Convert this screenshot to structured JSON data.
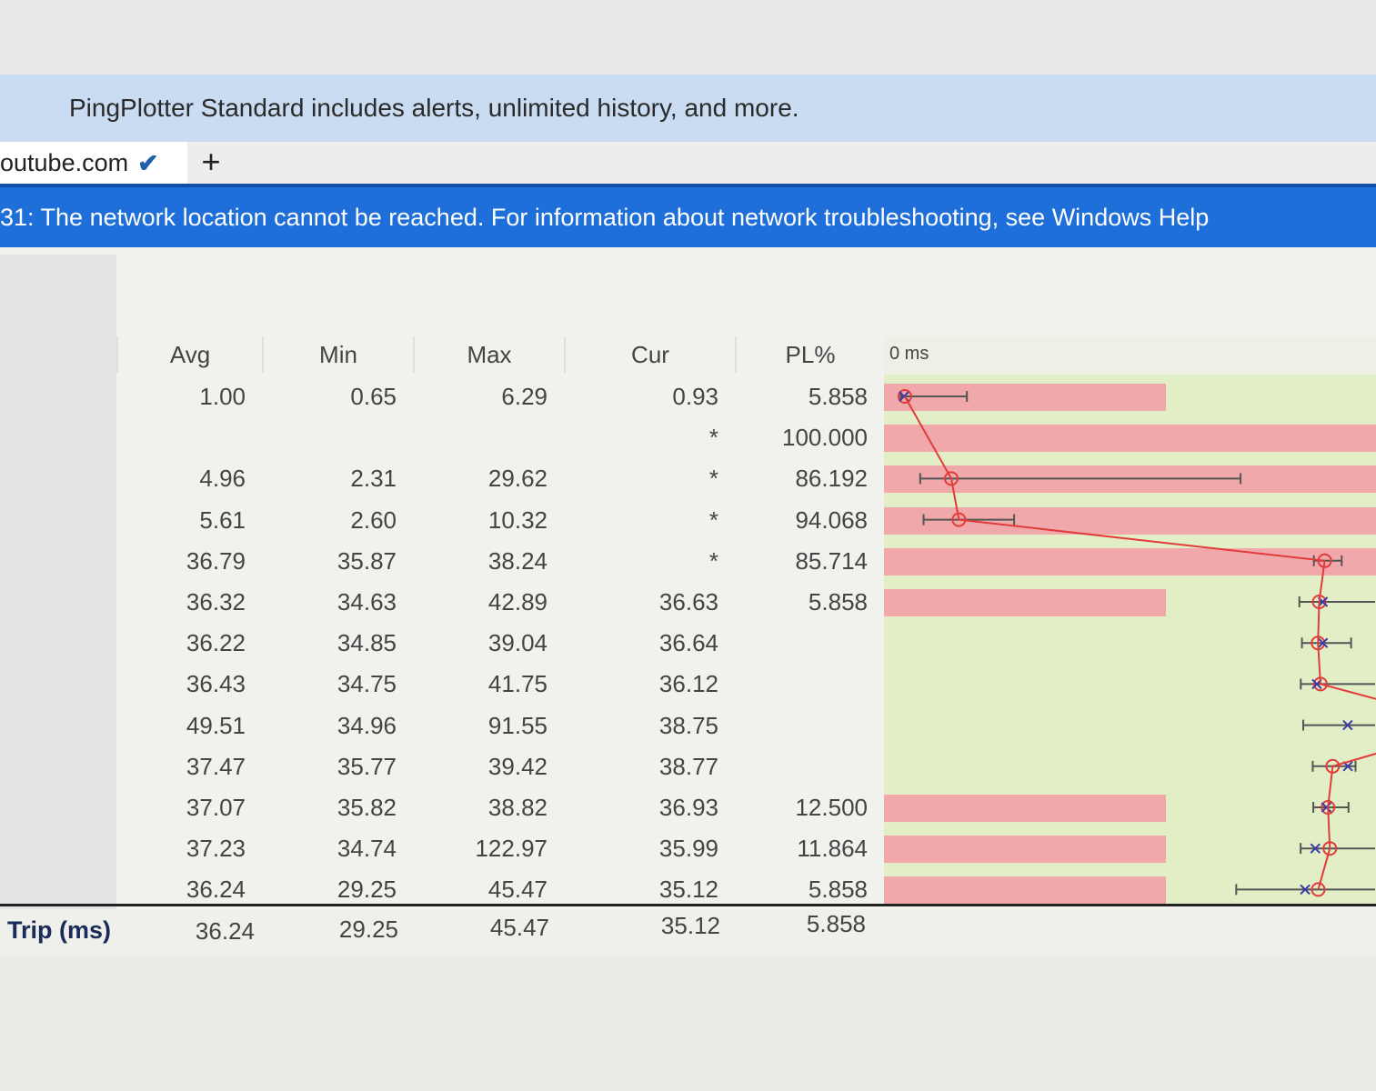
{
  "promo": {
    "text": "PingPlotter Standard includes alerts, unlimited history, and more."
  },
  "tabs": {
    "active_label": "outube.com",
    "check_icon": "check-icon",
    "add_label": "+"
  },
  "error": {
    "message": "31: The network location cannot be reached. For information about network troubleshooting, see Windows Help"
  },
  "columns": {
    "avg": "Avg",
    "min": "Min",
    "max": "Max",
    "cur": "Cur",
    "pl": "PL%",
    "graph": "0 ms"
  },
  "rows": [
    {
      "avg": "1.00",
      "min": "0.65",
      "max": "6.29",
      "cur": "0.93",
      "pl": "5.858",
      "pl_value": 5.858
    },
    {
      "avg": "",
      "min": "",
      "max": "",
      "cur": "*",
      "pl": "100.000",
      "pl_value": 100.0
    },
    {
      "avg": "4.96",
      "min": "2.31",
      "max": "29.62",
      "cur": "*",
      "pl": "86.192",
      "pl_value": 86.192
    },
    {
      "avg": "5.61",
      "min": "2.60",
      "max": "10.32",
      "cur": "*",
      "pl": "94.068",
      "pl_value": 94.068
    },
    {
      "avg": "36.79",
      "min": "35.87",
      "max": "38.24",
      "cur": "*",
      "pl": "85.714",
      "pl_value": 85.714
    },
    {
      "avg": "36.32",
      "min": "34.63",
      "max": "42.89",
      "cur": "36.63",
      "pl": "5.858",
      "pl_value": 5.858
    },
    {
      "avg": "36.22",
      "min": "34.85",
      "max": "39.04",
      "cur": "36.64",
      "pl": "",
      "pl_value": 0
    },
    {
      "avg": "36.43",
      "min": "34.75",
      "max": "41.75",
      "cur": "36.12",
      "pl": "",
      "pl_value": 0
    },
    {
      "avg": "49.51",
      "min": "34.96",
      "max": "91.55",
      "cur": "38.75",
      "pl": "",
      "pl_value": 0
    },
    {
      "avg": "37.47",
      "min": "35.77",
      "max": "39.42",
      "cur": "38.77",
      "pl": "",
      "pl_value": 0
    },
    {
      "avg": "37.07",
      "min": "35.82",
      "max": "38.82",
      "cur": "36.93",
      "pl": "12.500",
      "pl_value": 12.5
    },
    {
      "avg": "37.23",
      "min": "34.74",
      "max": "122.97",
      "cur": "35.99",
      "pl": "11.864",
      "pl_value": 11.864
    },
    {
      "avg": "36.24",
      "min": "29.25",
      "max": "45.47",
      "cur": "35.12",
      "pl": "5.858",
      "pl_value": 5.858
    }
  ],
  "trip": {
    "label": "Trip (ms)",
    "avg": "36.24",
    "min": "29.25",
    "max": "45.47",
    "cur": "35.12",
    "pl": "5.858"
  },
  "colors": {
    "error_bar": "#1e6fd9",
    "promo_bar": "#c9dcf1",
    "graph_bg": "#e2efc6",
    "pl_bar": "#f0a8ab",
    "latency_line": "#e23b3b",
    "range_line": "#555555",
    "marker_x": "#3a3aa8"
  }
}
